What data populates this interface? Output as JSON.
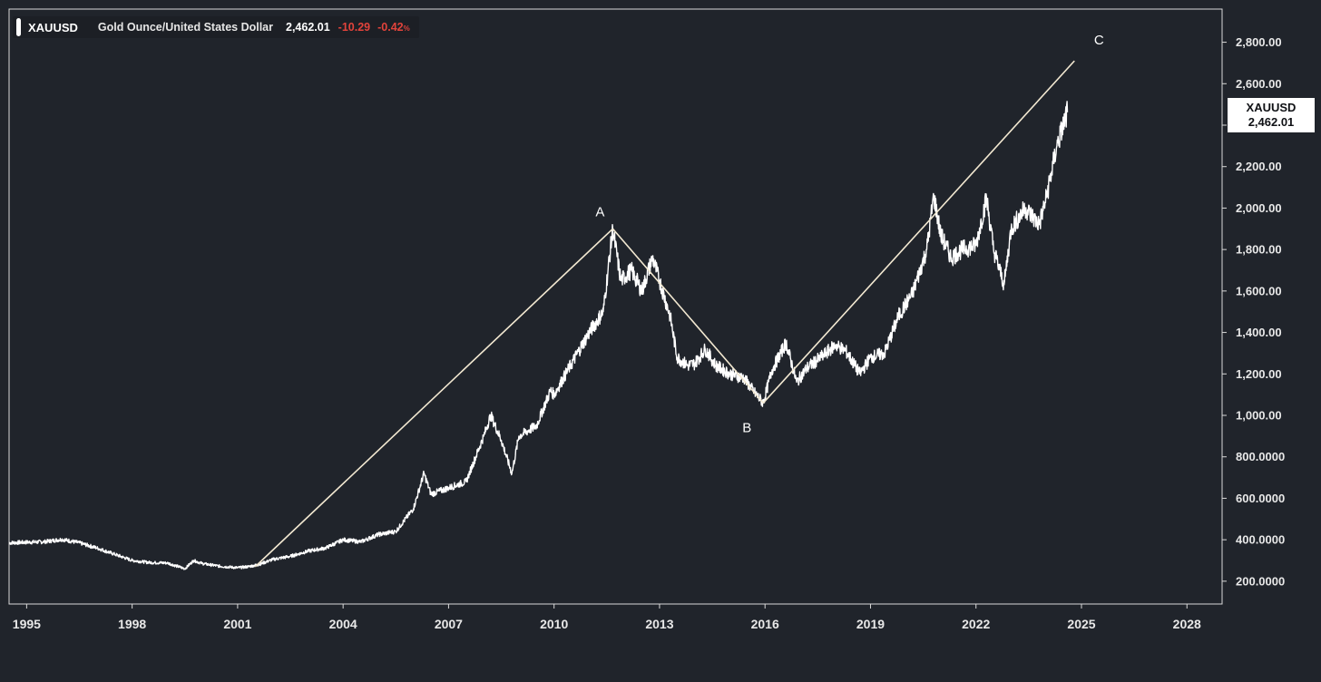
{
  "legend": {
    "symbol": "XAUUSD",
    "description": "Gold Ounce/United States Dollar",
    "last": "2,462.01",
    "change": "-10.29",
    "change_pct": "-0.42",
    "pct_sign": "%"
  },
  "price_tag": {
    "symbol": "XAUUSD",
    "value": "2,462.01"
  },
  "colors": {
    "background": "#20242b",
    "price_line": "#ffffff",
    "wave_line": "#f3e9d2",
    "negative": "#e2433b",
    "frame": "#d9d9d9"
  },
  "chart_data": {
    "type": "line",
    "title": "",
    "xlabel": "",
    "ylabel": "",
    "x_ticks": [
      "1995",
      "1998",
      "2001",
      "2004",
      "2007",
      "2010",
      "2013",
      "2016",
      "2019",
      "2022",
      "2025",
      "2028"
    ],
    "x_tick_values": [
      1995,
      1998,
      2001,
      2004,
      2007,
      2010,
      2013,
      2016,
      2019,
      2022,
      2025,
      2028
    ],
    "xlim": [
      1994.5,
      2029.0
    ],
    "y_ticks": [
      "200.0000",
      "400.0000",
      "600.0000",
      "800.0000",
      "1,000.00",
      "1,200.00",
      "1,400.00",
      "1,600.00",
      "1,800.00",
      "2,000.00",
      "2,200.00",
      "2,400.00",
      "2,600.00",
      "2,800.00"
    ],
    "y_tick_values": [
      200,
      400,
      600,
      800,
      1000,
      1200,
      1400,
      1600,
      1800,
      2000,
      2200,
      2400,
      2600,
      2800
    ],
    "ylim": [
      90,
      2960
    ],
    "series": [
      {
        "x": [
          1994.5,
          1995.0,
          1995.5,
          1996.0,
          1996.5,
          1997.0,
          1997.5,
          1998.0,
          1998.5,
          1999.0,
          1999.5,
          1999.75,
          2000.0,
          2000.5,
          2001.0,
          2001.3,
          2001.6,
          2002.0,
          2002.5,
          2003.0,
          2003.5,
          2004.0,
          2004.5,
          2005.0,
          2005.5,
          2006.0,
          2006.3,
          2006.5,
          2007.0,
          2007.5,
          2008.0,
          2008.2,
          2008.5,
          2008.8,
          2009.0,
          2009.5,
          2009.9,
          2010.0,
          2010.5,
          2011.0,
          2011.4,
          2011.67,
          2011.9,
          2012.2,
          2012.5,
          2012.8,
          2013.0,
          2013.3,
          2013.5,
          2013.8,
          2014.0,
          2014.3,
          2014.6,
          2015.0,
          2015.4,
          2015.7,
          2015.95,
          2016.2,
          2016.6,
          2016.9,
          2017.2,
          2017.6,
          2018.0,
          2018.3,
          2018.7,
          2019.0,
          2019.4,
          2019.8,
          2020.2,
          2020.6,
          2020.8,
          2021.0,
          2021.3,
          2021.6,
          2022.0,
          2022.3,
          2022.5,
          2022.8,
          2023.0,
          2023.4,
          2023.8,
          2024.0,
          2024.3,
          2024.6
        ],
        "y": [
          385,
          388,
          390,
          402,
          385,
          360,
          330,
          300,
          290,
          288,
          260,
          300,
          285,
          272,
          265,
          270,
          280,
          305,
          320,
          345,
          360,
          400,
          390,
          425,
          440,
          550,
          720,
          620,
          650,
          680,
          900,
          1000,
          880,
          720,
          900,
          950,
          1120,
          1100,
          1250,
          1400,
          1500,
          1900,
          1650,
          1700,
          1600,
          1760,
          1650,
          1480,
          1280,
          1240,
          1250,
          1320,
          1240,
          1200,
          1180,
          1110,
          1060,
          1220,
          1350,
          1160,
          1230,
          1280,
          1340,
          1310,
          1200,
          1280,
          1300,
          1480,
          1590,
          1800,
          2060,
          1870,
          1760,
          1800,
          1820,
          2050,
          1800,
          1630,
          1900,
          2000,
          1920,
          2050,
          2300,
          2462
        ]
      }
    ],
    "annotations": [
      {
        "label": "A",
        "x": 2011.67,
        "y": 1900
      },
      {
        "label": "B",
        "x": 2015.95,
        "y": 1060
      },
      {
        "label": "C",
        "x": 2024.8,
        "y": 2710
      }
    ],
    "wave_lines": [
      {
        "from": [
          2001.5,
          270
        ],
        "to": [
          2011.67,
          1900
        ]
      },
      {
        "from": [
          2011.67,
          1900
        ],
        "to": [
          2015.95,
          1060
        ]
      },
      {
        "from": [
          2015.95,
          1060
        ],
        "to": [
          2024.8,
          2710
        ]
      }
    ],
    "last_value": 2462.01,
    "grid": false,
    "legend": "top-left"
  }
}
